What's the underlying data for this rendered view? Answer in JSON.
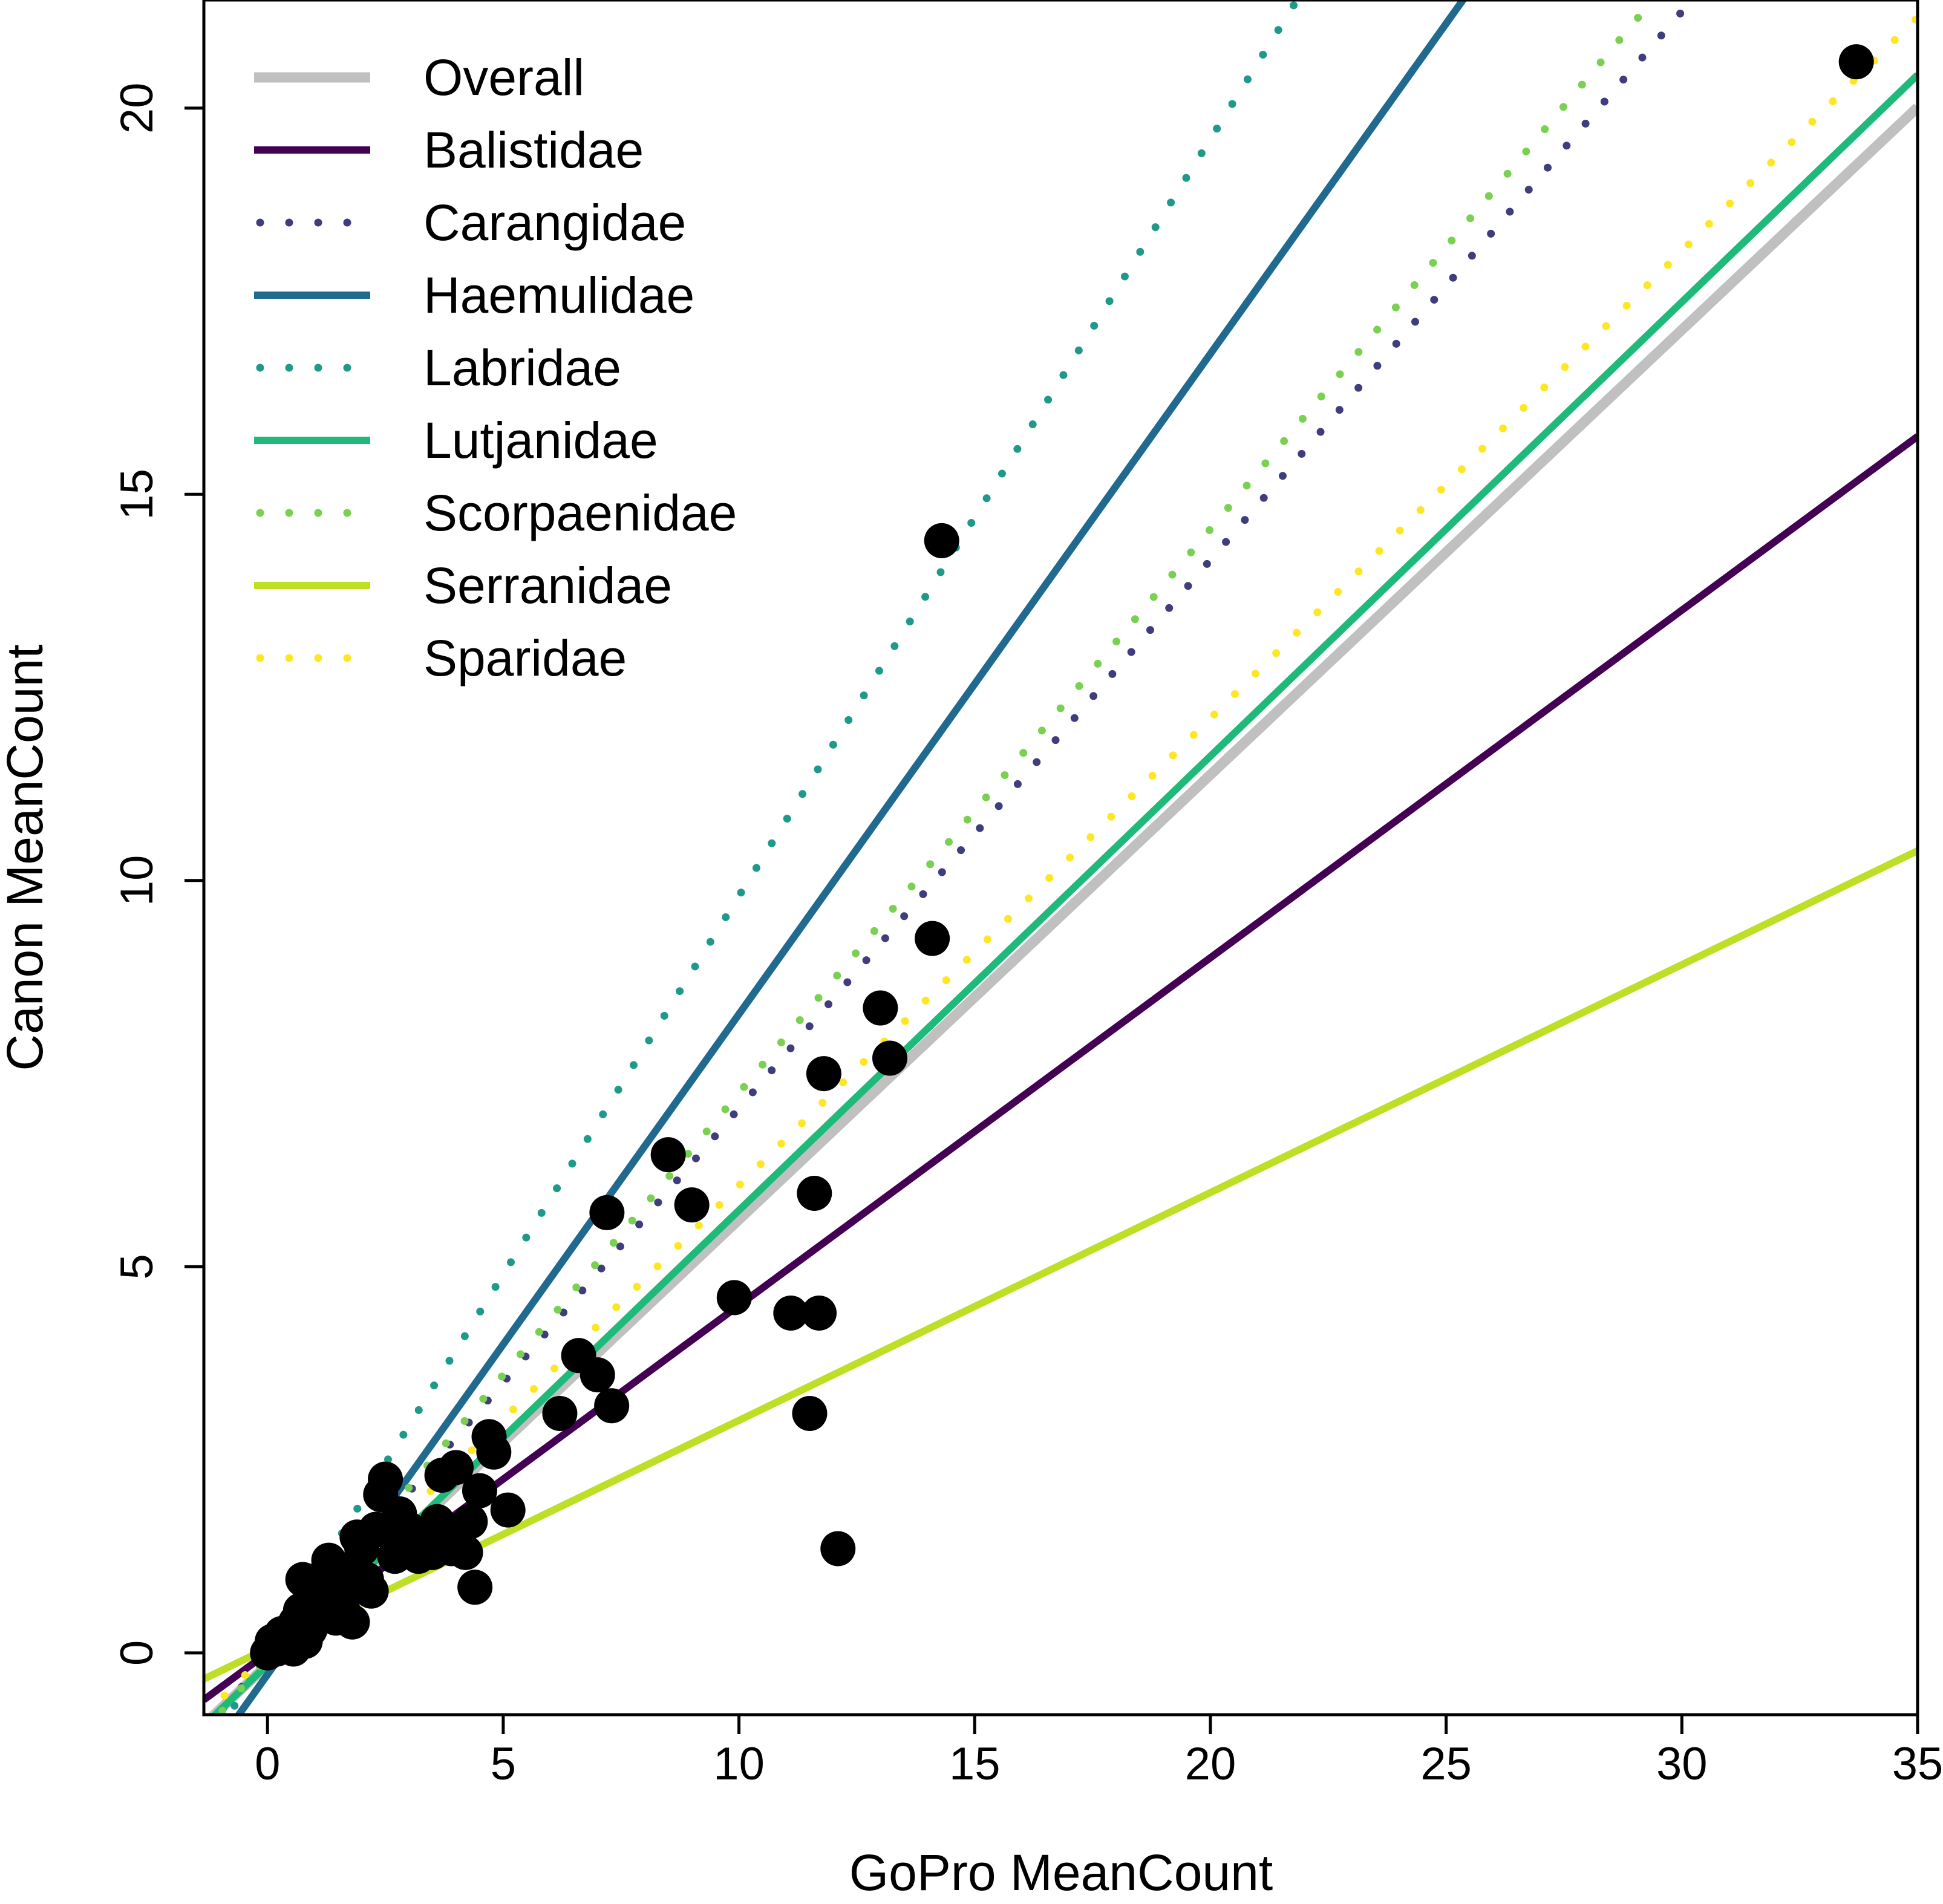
{
  "chart_data": {
    "type": "scatter",
    "title": "",
    "xlabel": "GoPro MeanCount",
    "ylabel": "Canon MeanCount",
    "xlim": [
      -1.35,
      35
    ],
    "ylim": [
      -0.8,
      21.4
    ],
    "x_ticks": [
      0,
      5,
      10,
      15,
      20,
      25,
      30,
      35
    ],
    "y_ticks": [
      0,
      5,
      10,
      15,
      20
    ],
    "legend_position": "top-left",
    "points": [
      [
        0.0,
        0.0
      ],
      [
        0.1,
        0.15
      ],
      [
        0.2,
        0.05
      ],
      [
        0.3,
        0.25
      ],
      [
        0.35,
        0.1
      ],
      [
        0.5,
        0.2
      ],
      [
        0.55,
        0.05
      ],
      [
        0.6,
        0.4
      ],
      [
        0.7,
        0.55
      ],
      [
        0.75,
        0.95
      ],
      [
        0.8,
        0.15
      ],
      [
        0.9,
        0.3
      ],
      [
        1.0,
        0.45
      ],
      [
        1.0,
        0.7
      ],
      [
        1.1,
        0.85
      ],
      [
        1.2,
        1.0
      ],
      [
        1.3,
        1.2
      ],
      [
        1.4,
        0.65
      ],
      [
        1.45,
        0.45
      ],
      [
        1.6,
        0.55
      ],
      [
        1.7,
        0.9
      ],
      [
        1.8,
        1.1
      ],
      [
        1.8,
        0.4
      ],
      [
        1.9,
        1.5
      ],
      [
        2.0,
        1.35
      ],
      [
        2.1,
        0.95
      ],
      [
        2.2,
        0.8
      ],
      [
        2.3,
        1.6
      ],
      [
        2.4,
        2.05
      ],
      [
        2.5,
        2.25
      ],
      [
        2.6,
        1.55
      ],
      [
        2.7,
        1.25
      ],
      [
        2.8,
        1.8
      ],
      [
        3.0,
        1.6
      ],
      [
        3.1,
        1.45
      ],
      [
        3.2,
        1.25
      ],
      [
        3.3,
        1.5
      ],
      [
        3.5,
        1.3
      ],
      [
        3.6,
        1.7
      ],
      [
        3.7,
        2.3
      ],
      [
        3.8,
        1.5
      ],
      [
        3.9,
        1.35
      ],
      [
        4.0,
        2.4
      ],
      [
        4.1,
        1.6
      ],
      [
        4.2,
        1.3
      ],
      [
        4.3,
        1.7
      ],
      [
        4.4,
        0.85
      ],
      [
        4.5,
        2.1
      ],
      [
        4.7,
        2.8
      ],
      [
        4.8,
        2.6
      ],
      [
        5.1,
        1.85
      ],
      [
        6.2,
        3.1
      ],
      [
        6.6,
        3.85
      ],
      [
        7.0,
        3.6
      ],
      [
        7.2,
        5.7
      ],
      [
        7.3,
        3.2
      ],
      [
        8.5,
        6.45
      ],
      [
        9.0,
        5.8
      ],
      [
        9.9,
        4.6
      ],
      [
        11.1,
        4.4
      ],
      [
        11.5,
        3.1
      ],
      [
        11.6,
        5.95
      ],
      [
        11.7,
        4.4
      ],
      [
        11.8,
        7.5
      ],
      [
        12.1,
        1.35
      ],
      [
        13.0,
        8.35
      ],
      [
        13.2,
        7.7
      ],
      [
        14.1,
        9.25
      ],
      [
        14.3,
        14.4
      ],
      [
        33.7,
        20.6
      ]
    ],
    "series": [
      {
        "name": "Overall",
        "style": "solid",
        "color": "#c0c0c0",
        "slope": 0.576,
        "intercept": -0.15
      },
      {
        "name": "Balistidae",
        "style": "solid",
        "color": "#440154",
        "slope": 0.45,
        "intercept": 0.0
      },
      {
        "name": "Carangidae",
        "style": "dotted",
        "color": "#3f3d7d",
        "slope": 0.71,
        "intercept": -0.05
      },
      {
        "name": "Haemulidae",
        "style": "solid",
        "color": "#1f6a8e",
        "slope": 0.855,
        "intercept": -0.28
      },
      {
        "name": "Labridae",
        "style": "dotted",
        "color": "#1f9a8a",
        "slope": 0.98,
        "intercept": 0.0
      },
      {
        "name": "Lutjanidae",
        "style": "solid",
        "color": "#1fba7a",
        "slope": 0.588,
        "intercept": -0.15
      },
      {
        "name": "Scorpaenidae",
        "style": "dotted",
        "color": "#7ad151",
        "slope": 0.73,
        "intercept": -0.05
      },
      {
        "name": "Serranidae",
        "style": "solid",
        "color": "#bddf26",
        "slope": 0.295,
        "intercept": 0.06
      },
      {
        "name": "Sparidae",
        "style": "dotted",
        "color": "#fde725",
        "slope": 0.605,
        "intercept": 0.0
      }
    ]
  }
}
